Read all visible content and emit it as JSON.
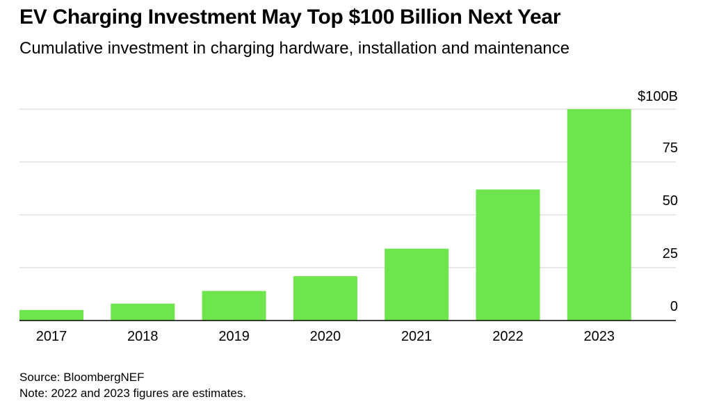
{
  "title": "EV Charging Investment May Top $100 Billion Next Year",
  "subtitle": "Cumulative investment in charging hardware, installation and maintenance",
  "footer": {
    "source": "Source: BloombergNEF",
    "note": "Note: 2022 and 2023 figures are estimates."
  },
  "colors": {
    "bar": "#6fe54d",
    "grid": "#d9d9d9",
    "baseline": "#000000"
  },
  "chart_data": {
    "type": "bar",
    "categories": [
      "2017",
      "2018",
      "2019",
      "2020",
      "2021",
      "2022",
      "2023"
    ],
    "values": [
      5,
      8,
      14,
      21,
      34,
      62,
      100
    ],
    "ylim": [
      0,
      100
    ],
    "yticks": [
      0,
      25,
      50,
      75,
      100
    ],
    "ytick_labels": [
      "0",
      "25",
      "50",
      "75",
      "$100B"
    ],
    "yaxis_position": "right",
    "grid": true,
    "xlabel": "",
    "ylabel": ""
  }
}
